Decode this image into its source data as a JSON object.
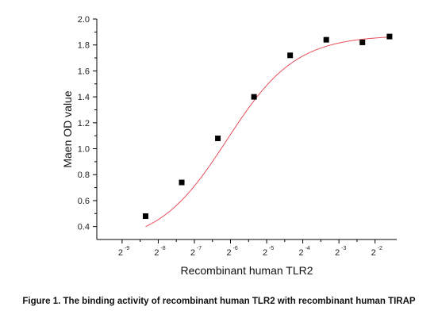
{
  "chart_data": {
    "type": "scatter",
    "xlabel": "Recombinant human TLR2",
    "ylabel": "Maen OD value",
    "x_scale": "log2",
    "x_tick_exponents": [
      -9,
      -8,
      -7,
      -6,
      -5,
      -4,
      -3,
      -2
    ],
    "x_tick_base": "2",
    "xlim": [
      -9.7,
      -1.4
    ],
    "ylim": [
      0.3,
      2.0
    ],
    "y_ticks": [
      "0.4",
      "0.6",
      "0.8",
      "1.0",
      "1.2",
      "1.4",
      "1.6",
      "1.8",
      "2.0"
    ],
    "series": [
      {
        "marker": "square",
        "color": "#000000",
        "x": [
          -8.35,
          -7.35,
          -6.35,
          -5.35,
          -4.35,
          -3.35,
          -2.35,
          -1.6
        ],
        "y": [
          0.48,
          0.74,
          1.08,
          1.4,
          1.72,
          1.84,
          1.82,
          1.865
        ]
      }
    ],
    "fit_curve": {
      "color": "#e8505b",
      "type": "logistic"
    },
    "grid": false
  },
  "caption": "Figure 1. The binding activity of recombinant human TLR2 with  recombinant human TIRAP"
}
